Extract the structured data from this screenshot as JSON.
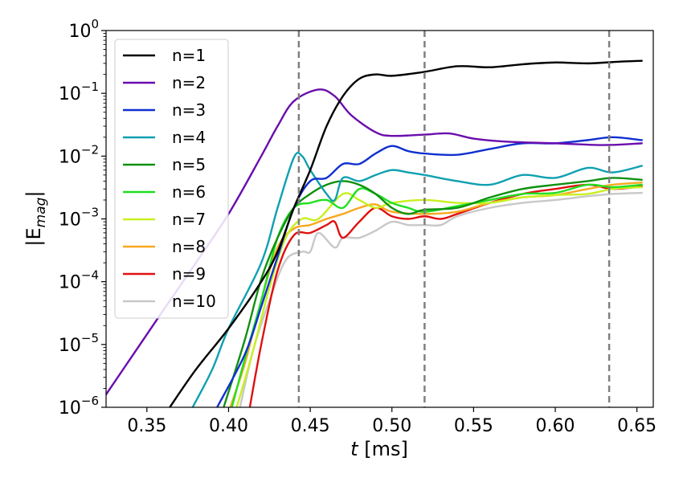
{
  "chart_data": {
    "type": "line",
    "xlabel_var": "t",
    "xlabel_unit": " [ms]",
    "ylabel_base": "|E",
    "ylabel_sub": "mag",
    "ylabel_close": "|",
    "y_scale": "log",
    "xlim": [
      0.325,
      0.66
    ],
    "ylim": [
      1e-06,
      1
    ],
    "x_ticks": [
      0.35,
      0.4,
      0.45,
      0.5,
      0.55,
      0.6,
      0.65
    ],
    "x_tick_labels": [
      "0.35",
      "0.40",
      "0.45",
      "0.50",
      "0.55",
      "0.60",
      "0.65"
    ],
    "y_ticks": [
      {
        "value": 1e-06,
        "base": "10",
        "exp": "−6"
      },
      {
        "value": 1e-05,
        "base": "10",
        "exp": "−5"
      },
      {
        "value": 0.0001,
        "base": "10",
        "exp": "−4"
      },
      {
        "value": 0.001,
        "base": "10",
        "exp": "−3"
      },
      {
        "value": 0.01,
        "base": "10",
        "exp": "−2"
      },
      {
        "value": 0.1,
        "base": "10",
        "exp": "−1"
      },
      {
        "value": 1,
        "base": "10",
        "exp": "0"
      }
    ],
    "vlines": [
      0.443,
      0.52,
      0.633
    ],
    "vline_color": "#808080",
    "legend_position": "upper-left",
    "series": [
      {
        "name": "n=1",
        "color": "#000000",
        "points": [
          [
            0.364,
            1e-06
          ],
          [
            0.38,
            4e-06
          ],
          [
            0.4,
            1.8e-05
          ],
          [
            0.42,
            0.0001
          ],
          [
            0.43,
            0.0003
          ],
          [
            0.44,
            0.0015
          ],
          [
            0.45,
            0.006
          ],
          [
            0.46,
            0.03
          ],
          [
            0.47,
            0.09
          ],
          [
            0.48,
            0.17
          ],
          [
            0.49,
            0.2
          ],
          [
            0.5,
            0.19
          ],
          [
            0.52,
            0.22
          ],
          [
            0.54,
            0.27
          ],
          [
            0.56,
            0.26
          ],
          [
            0.58,
            0.29
          ],
          [
            0.6,
            0.31
          ],
          [
            0.62,
            0.3
          ],
          [
            0.64,
            0.32
          ],
          [
            0.653,
            0.33
          ]
        ]
      },
      {
        "name": "n=2",
        "color": "#6a0dad",
        "points": [
          [
            0.325,
            1.6e-06
          ],
          [
            0.34,
            6e-06
          ],
          [
            0.36,
            3.5e-05
          ],
          [
            0.38,
            0.0002
          ],
          [
            0.4,
            0.0012
          ],
          [
            0.42,
            0.01
          ],
          [
            0.43,
            0.03
          ],
          [
            0.44,
            0.075
          ],
          [
            0.455,
            0.115
          ],
          [
            0.465,
            0.09
          ],
          [
            0.475,
            0.045
          ],
          [
            0.49,
            0.024
          ],
          [
            0.5,
            0.021
          ],
          [
            0.52,
            0.022
          ],
          [
            0.535,
            0.023
          ],
          [
            0.55,
            0.019
          ],
          [
            0.57,
            0.017
          ],
          [
            0.6,
            0.016
          ],
          [
            0.63,
            0.015
          ],
          [
            0.653,
            0.016
          ]
        ]
      },
      {
        "name": "n=3",
        "color": "#1030d0",
        "points": [
          [
            0.393,
            1e-06
          ],
          [
            0.41,
            7e-06
          ],
          [
            0.42,
            4e-05
          ],
          [
            0.43,
            0.00025
          ],
          [
            0.44,
            0.0015
          ],
          [
            0.45,
            0.004
          ],
          [
            0.46,
            0.0045
          ],
          [
            0.47,
            0.0075
          ],
          [
            0.48,
            0.0075
          ],
          [
            0.49,
            0.011
          ],
          [
            0.5,
            0.0145
          ],
          [
            0.51,
            0.012
          ],
          [
            0.52,
            0.011
          ],
          [
            0.54,
            0.0105
          ],
          [
            0.56,
            0.013
          ],
          [
            0.58,
            0.016
          ],
          [
            0.6,
            0.016
          ],
          [
            0.62,
            0.018
          ],
          [
            0.635,
            0.02
          ],
          [
            0.653,
            0.018
          ]
        ]
      },
      {
        "name": "n=4",
        "color": "#10a0b0",
        "points": [
          [
            0.378,
            1e-06
          ],
          [
            0.39,
            4e-06
          ],
          [
            0.4,
            1.8e-05
          ],
          [
            0.42,
            0.0002
          ],
          [
            0.43,
            0.0015
          ],
          [
            0.44,
            0.0095
          ],
          [
            0.445,
            0.01
          ],
          [
            0.45,
            0.006
          ],
          [
            0.46,
            0.0025
          ],
          [
            0.465,
            0.002
          ],
          [
            0.47,
            0.0045
          ],
          [
            0.48,
            0.004
          ],
          [
            0.49,
            0.005
          ],
          [
            0.5,
            0.006
          ],
          [
            0.51,
            0.0055
          ],
          [
            0.52,
            0.005
          ],
          [
            0.54,
            0.004
          ],
          [
            0.56,
            0.0035
          ],
          [
            0.58,
            0.005
          ],
          [
            0.6,
            0.0045
          ],
          [
            0.62,
            0.0065
          ],
          [
            0.635,
            0.0055
          ],
          [
            0.653,
            0.007
          ]
        ]
      },
      {
        "name": "n=5",
        "color": "#109010",
        "points": [
          [
            0.397,
            1e-06
          ],
          [
            0.41,
            1.2e-05
          ],
          [
            0.42,
            0.00011
          ],
          [
            0.43,
            0.0005
          ],
          [
            0.44,
            0.0015
          ],
          [
            0.45,
            0.0025
          ],
          [
            0.46,
            0.0035
          ],
          [
            0.47,
            0.004
          ],
          [
            0.48,
            0.0035
          ],
          [
            0.49,
            0.0025
          ],
          [
            0.5,
            0.0015
          ],
          [
            0.51,
            0.0012
          ],
          [
            0.52,
            0.0014
          ],
          [
            0.54,
            0.0015
          ],
          [
            0.56,
            0.0022
          ],
          [
            0.58,
            0.003
          ],
          [
            0.6,
            0.0035
          ],
          [
            0.62,
            0.004
          ],
          [
            0.635,
            0.0045
          ],
          [
            0.653,
            0.0042
          ]
        ]
      },
      {
        "name": "n=6",
        "color": "#20e020",
        "points": [
          [
            0.402,
            1e-06
          ],
          [
            0.41,
            6e-06
          ],
          [
            0.42,
            5e-05
          ],
          [
            0.43,
            0.0005
          ],
          [
            0.44,
            0.0015
          ],
          [
            0.45,
            0.0018
          ],
          [
            0.46,
            0.002
          ],
          [
            0.47,
            0.0015
          ],
          [
            0.48,
            0.003
          ],
          [
            0.49,
            0.0025
          ],
          [
            0.5,
            0.0018
          ],
          [
            0.51,
            0.0015
          ],
          [
            0.52,
            0.0013
          ],
          [
            0.54,
            0.0016
          ],
          [
            0.56,
            0.002
          ],
          [
            0.58,
            0.0025
          ],
          [
            0.6,
            0.0026
          ],
          [
            0.62,
            0.0035
          ],
          [
            0.635,
            0.0032
          ],
          [
            0.653,
            0.0035
          ]
        ]
      },
      {
        "name": "n=7",
        "color": "#c8f020",
        "points": [
          [
            0.405,
            1e-06
          ],
          [
            0.415,
            8e-06
          ],
          [
            0.425,
            8e-05
          ],
          [
            0.435,
            0.0005
          ],
          [
            0.445,
            0.001
          ],
          [
            0.455,
            0.001
          ],
          [
            0.47,
            0.0025
          ],
          [
            0.48,
            0.002
          ],
          [
            0.49,
            0.0015
          ],
          [
            0.5,
            0.0018
          ],
          [
            0.52,
            0.002
          ],
          [
            0.54,
            0.0018
          ],
          [
            0.56,
            0.0018
          ],
          [
            0.58,
            0.0022
          ],
          [
            0.6,
            0.0024
          ],
          [
            0.62,
            0.0025
          ],
          [
            0.635,
            0.003
          ],
          [
            0.653,
            0.0032
          ]
        ]
      },
      {
        "name": "n=8",
        "color": "#f8a820",
        "points": [
          [
            0.401,
            1e-06
          ],
          [
            0.41,
            5e-06
          ],
          [
            0.42,
            5e-05
          ],
          [
            0.43,
            0.00035
          ],
          [
            0.44,
            0.0007
          ],
          [
            0.45,
            0.0008
          ],
          [
            0.46,
            0.001
          ],
          [
            0.47,
            0.0012
          ],
          [
            0.48,
            0.0015
          ],
          [
            0.49,
            0.0017
          ],
          [
            0.5,
            0.0013
          ],
          [
            0.52,
            0.0012
          ],
          [
            0.54,
            0.0013
          ],
          [
            0.56,
            0.0018
          ],
          [
            0.58,
            0.0022
          ],
          [
            0.6,
            0.0024
          ],
          [
            0.62,
            0.003
          ],
          [
            0.635,
            0.0035
          ],
          [
            0.653,
            0.0038
          ]
        ]
      },
      {
        "name": "n=9",
        "color": "#e01010",
        "points": [
          [
            0.413,
            1e-06
          ],
          [
            0.42,
            1e-05
          ],
          [
            0.43,
            0.00015
          ],
          [
            0.44,
            0.00055
          ],
          [
            0.45,
            0.0006
          ],
          [
            0.46,
            0.0008
          ],
          [
            0.465,
            0.0009
          ],
          [
            0.47,
            0.0005
          ],
          [
            0.48,
            0.0009
          ],
          [
            0.49,
            0.0015
          ],
          [
            0.5,
            0.0011
          ],
          [
            0.51,
            0.001
          ],
          [
            0.52,
            0.0011
          ],
          [
            0.53,
            0.001
          ],
          [
            0.54,
            0.0012
          ],
          [
            0.56,
            0.0018
          ],
          [
            0.58,
            0.0025
          ],
          [
            0.6,
            0.003
          ],
          [
            0.62,
            0.0035
          ],
          [
            0.635,
            0.003
          ],
          [
            0.653,
            0.0033
          ]
        ]
      },
      {
        "name": "n=10",
        "color": "#c8c8c8",
        "points": [
          [
            0.407,
            1e-06
          ],
          [
            0.415,
            8e-06
          ],
          [
            0.425,
            5e-05
          ],
          [
            0.435,
            0.00022
          ],
          [
            0.445,
            0.0003
          ],
          [
            0.45,
            0.0003
          ],
          [
            0.455,
            0.0006
          ],
          [
            0.465,
            0.00035
          ],
          [
            0.47,
            0.0005
          ],
          [
            0.48,
            0.0005
          ],
          [
            0.49,
            0.00065
          ],
          [
            0.5,
            0.0009
          ],
          [
            0.51,
            0.0008
          ],
          [
            0.52,
            0.0008
          ],
          [
            0.53,
            0.0008
          ],
          [
            0.54,
            0.0011
          ],
          [
            0.56,
            0.0015
          ],
          [
            0.58,
            0.0018
          ],
          [
            0.6,
            0.002
          ],
          [
            0.62,
            0.0023
          ],
          [
            0.635,
            0.0025
          ],
          [
            0.653,
            0.0026
          ]
        ]
      }
    ]
  }
}
